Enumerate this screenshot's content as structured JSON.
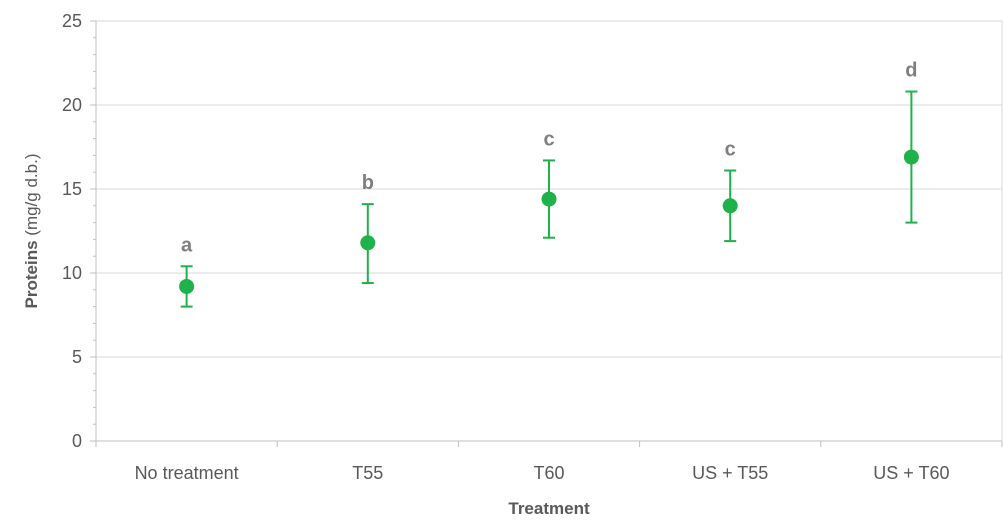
{
  "chart_data": {
    "type": "scatter",
    "categories": [
      "No treatment",
      "T55",
      "T60",
      "US + T55",
      "US + T60"
    ],
    "values": [
      9.2,
      11.8,
      14.4,
      14.0,
      16.9
    ],
    "error_low": [
      8.0,
      9.4,
      12.1,
      11.9,
      13.0
    ],
    "error_high": [
      10.4,
      14.1,
      16.7,
      16.1,
      20.8
    ],
    "significance_labels": [
      "a",
      "b",
      "c",
      "c",
      "d"
    ],
    "xlabel": "Treatment",
    "ylabel_bold": "Proteins",
    "ylabel_unit": " (mg/g d.b.)",
    "ylim": [
      0,
      25
    ],
    "yticks": [
      0,
      5,
      10,
      15,
      20,
      25
    ],
    "grid": true,
    "legend": "none",
    "colors": {
      "marker": "#1fb14a",
      "grid": "#d9d9d9",
      "axis": "#bfbfbf"
    }
  }
}
